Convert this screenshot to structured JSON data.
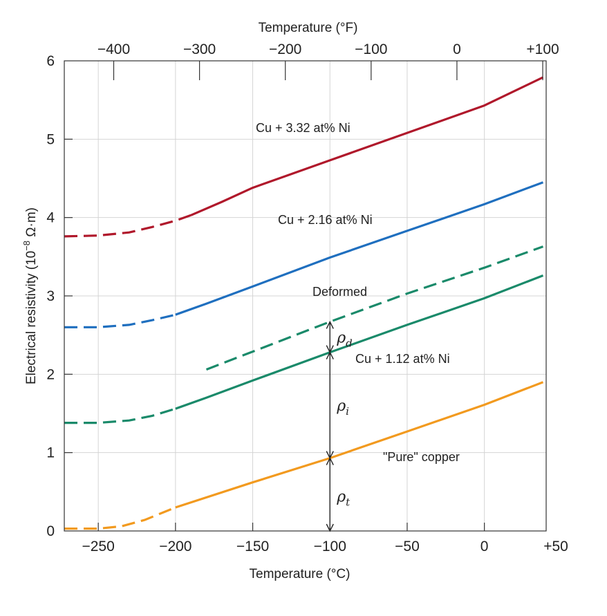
{
  "chart_data": {
    "type": "line",
    "xlabel": "Temperature (°C)",
    "x2label": "Temperature (°F)",
    "ylabel": "Electrical resistivity (10",
    "ylabel_exp": "−8",
    "ylabel_unit": " Ω·m)",
    "xlim": [
      -272,
      40
    ],
    "ylim": [
      0,
      6
    ],
    "x_ticks": [
      {
        "value": -250,
        "label": "−250"
      },
      {
        "value": -200,
        "label": "−200"
      },
      {
        "value": -150,
        "label": "−150"
      },
      {
        "value": -100,
        "label": "−100"
      },
      {
        "value": -50,
        "label": "−50"
      },
      {
        "value": 0,
        "label": "0"
      },
      {
        "value": 50,
        "label": "+50"
      }
    ],
    "x2_ticks": [
      {
        "value": -400,
        "label": "−400"
      },
      {
        "value": -300,
        "label": "−300"
      },
      {
        "value": -200,
        "label": "−200"
      },
      {
        "value": -100,
        "label": "−100"
      },
      {
        "value": 0,
        "label": "0"
      },
      {
        "value": 100,
        "label": "+100"
      }
    ],
    "y_ticks": [
      {
        "value": 0,
        "label": "0"
      },
      {
        "value": 1,
        "label": "1"
      },
      {
        "value": 2,
        "label": "2"
      },
      {
        "value": 3,
        "label": "3"
      },
      {
        "value": 4,
        "label": "4"
      },
      {
        "value": 5,
        "label": "5"
      },
      {
        "value": 6,
        "label": "6"
      }
    ],
    "grid": true,
    "series": [
      {
        "name": "Cu + 3.32 at% Ni",
        "color": "#b0182b",
        "dashed_points": [
          [
            -272,
            3.76
          ],
          [
            -250,
            3.77
          ],
          [
            -230,
            3.81
          ],
          [
            -215,
            3.88
          ],
          [
            -200,
            3.96
          ],
          [
            -190,
            4.03
          ]
        ],
        "solid_points": [
          [
            -190,
            4.03
          ],
          [
            -170,
            4.2
          ],
          [
            -150,
            4.38
          ],
          [
            -100,
            4.73
          ],
          [
            -50,
            5.08
          ],
          [
            0,
            5.43
          ],
          [
            38,
            5.79
          ]
        ]
      },
      {
        "name": "Cu + 2.16 at% Ni",
        "color": "#1f6fbf",
        "dashed_points": [
          [
            -272,
            2.6
          ],
          [
            -250,
            2.6
          ],
          [
            -230,
            2.63
          ],
          [
            -215,
            2.69
          ],
          [
            -200,
            2.76
          ]
        ],
        "solid_points": [
          [
            -200,
            2.76
          ],
          [
            -180,
            2.9
          ],
          [
            -150,
            3.12
          ],
          [
            -100,
            3.49
          ],
          [
            -50,
            3.83
          ],
          [
            0,
            4.17
          ],
          [
            38,
            4.45
          ]
        ]
      },
      {
        "name": "Deformed",
        "color": "#1a8a6a",
        "dashed_points": [
          [
            -180,
            2.06
          ],
          [
            -100,
            2.67
          ],
          [
            -50,
            3.03
          ],
          [
            0,
            3.36
          ],
          [
            38,
            3.63
          ]
        ],
        "solid_points": []
      },
      {
        "name": "Cu + 1.12 at% Ni",
        "color": "#1a8a6a",
        "dashed_points": [
          [
            -272,
            1.38
          ],
          [
            -250,
            1.38
          ],
          [
            -230,
            1.41
          ],
          [
            -215,
            1.47
          ],
          [
            -200,
            1.56
          ]
        ],
        "solid_points": [
          [
            -200,
            1.56
          ],
          [
            -180,
            1.7
          ],
          [
            -150,
            1.92
          ],
          [
            -100,
            2.28
          ],
          [
            -50,
            2.63
          ],
          [
            0,
            2.97
          ],
          [
            38,
            3.26
          ]
        ]
      },
      {
        "name": "\"Pure\" copper",
        "color": "#f29a1f",
        "dashed_points": [
          [
            -272,
            0.03
          ],
          [
            -250,
            0.03
          ],
          [
            -235,
            0.06
          ],
          [
            -220,
            0.14
          ],
          [
            -205,
            0.26
          ],
          [
            -200,
            0.3
          ]
        ],
        "solid_points": [
          [
            -200,
            0.3
          ],
          [
            -150,
            0.62
          ],
          [
            -100,
            0.93
          ],
          [
            -50,
            1.27
          ],
          [
            0,
            1.61
          ],
          [
            38,
            1.9
          ]
        ]
      }
    ],
    "annotations": {
      "rho_t": {
        "symbol": "ρ",
        "subscript": "t",
        "x": -100,
        "from": 0,
        "to": 0.93
      },
      "rho_i": {
        "symbol": "ρ",
        "subscript": "i",
        "x": -100,
        "from": 0.93,
        "to": 2.28
      },
      "rho_d": {
        "symbol": "ρ",
        "subscript": "d",
        "x": -100,
        "from": 2.28,
        "to": 2.67
      }
    }
  }
}
